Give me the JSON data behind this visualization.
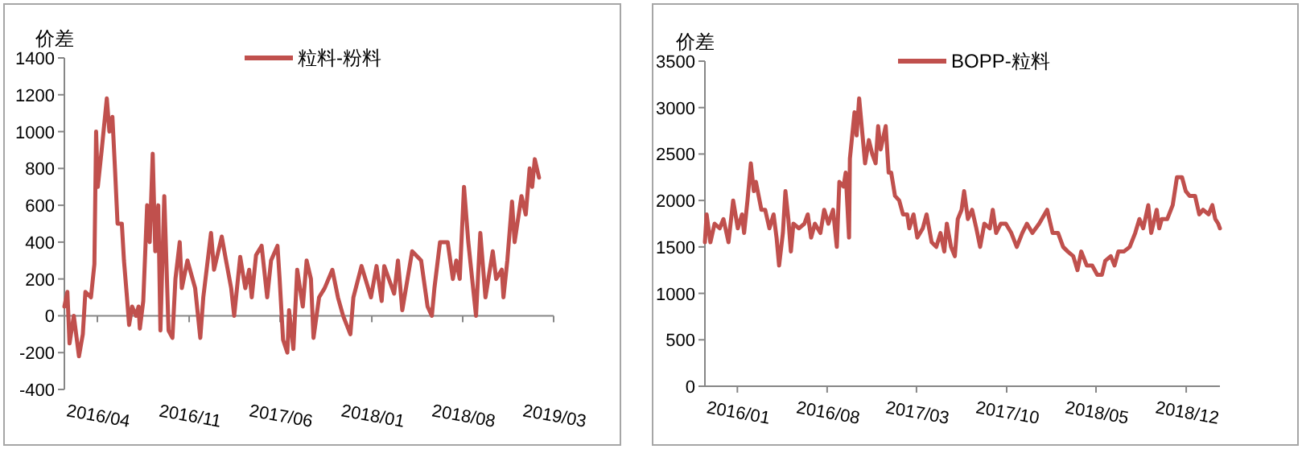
{
  "chart_data": [
    {
      "type": "line",
      "ylabel": "价差",
      "legend": "top",
      "xlim": [
        "2016-02-01",
        "2019-03-18"
      ],
      "ylim": [
        -400,
        1400
      ],
      "yticks": [
        -400,
        -200,
        0,
        200,
        400,
        600,
        800,
        1000,
        1200,
        1400
      ],
      "xticks": [
        {
          "value": "2016-04-18",
          "label": "2016/04"
        },
        {
          "value": "2016-11-18",
          "label": "2016/11"
        },
        {
          "value": "2017-06-18",
          "label": "2017/06"
        },
        {
          "value": "2018-01-18",
          "label": "2018/01"
        },
        {
          "value": "2018-08-18",
          "label": "2018/08"
        },
        {
          "value": "2019-03-18",
          "label": "2019/03"
        }
      ],
      "x": [
        "2016-02-01",
        "2016-02-08",
        "2016-02-13",
        "2016-02-23",
        "2016-03-06",
        "2016-03-15",
        "2016-03-21",
        "2016-04-03",
        "2016-04-11",
        "2016-04-15",
        "2016-04-19",
        "2016-04-28",
        "2016-05-10",
        "2016-05-16",
        "2016-05-23",
        "2016-05-29",
        "2016-06-04",
        "2016-06-14",
        "2016-06-19",
        "2016-06-26",
        "2016-07-01",
        "2016-07-08",
        "2016-07-17",
        "2016-07-23",
        "2016-07-26",
        "2016-08-03",
        "2016-08-12",
        "2016-08-18",
        "2016-08-25",
        "2016-08-31",
        "2016-09-07",
        "2016-09-12",
        "2016-09-21",
        "2016-10-01",
        "2016-10-10",
        "2016-10-17",
        "2016-10-27",
        "2016-11-01",
        "2016-11-14",
        "2016-12-02",
        "2016-12-14",
        "2016-12-21",
        "2017-01-08",
        "2017-01-15",
        "2017-02-02",
        "2017-02-12",
        "2017-02-24",
        "2017-03-03",
        "2017-03-17",
        "2017-03-29",
        "2017-04-07",
        "2017-04-13",
        "2017-04-23",
        "2017-05-06",
        "2017-05-19",
        "2017-05-28",
        "2017-06-12",
        "2017-06-17",
        "2017-06-25",
        "2017-07-05",
        "2017-07-09",
        "2017-07-19",
        "2017-07-28",
        "2017-08-10",
        "2017-08-19",
        "2017-08-29",
        "2017-09-04",
        "2017-09-17",
        "2017-09-30",
        "2017-10-18",
        "2017-10-31",
        "2017-11-12",
        "2017-11-29",
        "2017-12-06",
        "2017-12-25",
        "2018-01-16",
        "2018-01-29",
        "2018-02-10",
        "2018-02-16",
        "2018-03-11",
        "2018-03-20",
        "2018-03-30",
        "2018-04-22",
        "2018-05-13",
        "2018-05-28",
        "2018-06-07",
        "2018-06-13",
        "2018-06-26",
        "2018-07-14",
        "2018-07-26",
        "2018-08-03",
        "2018-08-11",
        "2018-08-21",
        "2018-08-31",
        "2018-09-09",
        "2018-09-18",
        "2018-09-28",
        "2018-10-10",
        "2018-10-27",
        "2018-11-04",
        "2018-11-17",
        "2018-11-21",
        "2018-11-30",
        "2018-12-11",
        "2018-12-17",
        "2019-01-02",
        "2019-01-12",
        "2019-01-21",
        "2019-01-27",
        "2019-02-02",
        "2019-02-12"
      ],
      "series": [
        {
          "name": "粒料-粉料",
          "color": "#c0504d",
          "values": [
            50,
            130,
            -150,
            0,
            -220,
            -100,
            130,
            100,
            280,
            1000,
            700,
            900,
            1180,
            1000,
            1080,
            800,
            500,
            500,
            300,
            100,
            -50,
            50,
            0,
            50,
            -70,
            80,
            600,
            400,
            880,
            350,
            600,
            -80,
            650,
            -80,
            -120,
            200,
            400,
            150,
            300,
            150,
            -120,
            100,
            450,
            250,
            430,
            300,
            150,
            0,
            320,
            150,
            250,
            100,
            330,
            380,
            100,
            300,
            380,
            200,
            -130,
            -200,
            30,
            -180,
            250,
            50,
            300,
            200,
            -120,
            100,
            150,
            250,
            100,
            0,
            -100,
            100,
            270,
            100,
            270,
            80,
            270,
            120,
            300,
            30,
            350,
            300,
            50,
            0,
            150,
            400,
            400,
            200,
            300,
            200,
            700,
            400,
            200,
            0,
            450,
            100,
            350,
            200,
            250,
            100,
            300,
            620,
            400,
            650,
            550,
            800,
            700,
            850,
            750
          ]
        }
      ]
    },
    {
      "type": "line",
      "ylabel": "价差",
      "legend": "top",
      "xlim": [
        "2015-11-01",
        "2019-03-07"
      ],
      "ylim": [
        0,
        3500
      ],
      "yticks": [
        0,
        500,
        1000,
        1500,
        2000,
        2500,
        3000,
        3500
      ],
      "xticks": [
        {
          "value": "2016-01-17",
          "label": "2016/01"
        },
        {
          "value": "2016-08-17",
          "label": "2016/08"
        },
        {
          "value": "2017-03-17",
          "label": "2017/03"
        },
        {
          "value": "2017-10-17",
          "label": "2017/10"
        },
        {
          "value": "2018-05-17",
          "label": "2018/05"
        },
        {
          "value": "2018-12-17",
          "label": "2018/12"
        }
      ],
      "x": [
        "2015-11-01",
        "2015-11-05",
        "2015-11-14",
        "2015-11-24",
        "2015-12-06",
        "2015-12-15",
        "2015-12-27",
        "2016-01-07",
        "2016-01-18",
        "2016-01-28",
        "2016-02-02",
        "2016-02-10",
        "2016-02-18",
        "2016-02-25",
        "2016-03-01",
        "2016-03-14",
        "2016-03-23",
        "2016-04-02",
        "2016-04-12",
        "2016-04-19",
        "2016-04-25",
        "2016-05-04",
        "2016-05-10",
        "2016-05-17",
        "2016-05-23",
        "2016-05-29",
        "2016-06-11",
        "2016-06-24",
        "2016-07-02",
        "2016-07-10",
        "2016-07-19",
        "2016-08-01",
        "2016-08-10",
        "2016-08-20",
        "2016-08-31",
        "2016-09-09",
        "2016-09-15",
        "2016-09-25",
        "2016-09-30",
        "2016-10-08",
        "2016-10-10",
        "2016-10-21",
        "2016-10-26",
        "2016-11-01",
        "2016-11-09",
        "2016-11-15",
        "2016-11-24",
        "2016-12-02",
        "2016-12-10",
        "2016-12-16",
        "2016-12-22",
        "2017-01-03",
        "2017-01-10",
        "2017-01-16",
        "2017-01-25",
        "2017-02-04",
        "2017-02-13",
        "2017-02-23",
        "2017-02-28",
        "2017-03-10",
        "2017-03-19",
        "2017-04-01",
        "2017-04-10",
        "2017-04-22",
        "2017-05-03",
        "2017-05-13",
        "2017-05-22",
        "2017-05-28",
        "2017-06-07",
        "2017-06-16",
        "2017-06-23",
        "2017-07-02",
        "2017-07-08",
        "2017-07-17",
        "2017-07-27",
        "2017-08-06",
        "2017-08-15",
        "2017-08-25",
        "2017-09-07",
        "2017-09-14",
        "2017-09-22",
        "2017-10-03",
        "2017-10-15",
        "2017-10-28",
        "2017-11-10",
        "2017-11-23",
        "2017-12-04",
        "2017-12-17",
        "2018-01-02",
        "2018-01-21",
        "2018-02-03",
        "2018-02-16",
        "2018-02-28",
        "2018-03-11",
        "2018-03-24",
        "2018-04-03",
        "2018-04-12",
        "2018-04-25",
        "2018-05-08",
        "2018-05-20",
        "2018-05-31",
        "2018-06-08",
        "2018-06-21",
        "2018-06-30",
        "2018-07-09",
        "2018-07-22",
        "2018-08-05",
        "2018-08-18",
        "2018-08-28",
        "2018-09-06",
        "2018-09-18",
        "2018-09-25",
        "2018-10-08",
        "2018-10-14",
        "2018-10-20",
        "2018-11-02",
        "2018-11-15",
        "2018-11-25",
        "2018-12-07",
        "2018-12-16",
        "2018-12-25",
        "2019-01-07",
        "2019-01-17",
        "2019-01-26",
        "2019-02-08",
        "2019-02-17",
        "2019-02-24",
        "2019-03-03",
        "2019-03-07"
      ],
      "series": [
        {
          "name": "BOPP-粒料",
          "color": "#c0504d",
          "values": [
            1550,
            1850,
            1550,
            1750,
            1700,
            1800,
            1550,
            2000,
            1700,
            1850,
            1650,
            2000,
            2400,
            2100,
            2200,
            1900,
            1900,
            1700,
            1850,
            1600,
            1300,
            1650,
            2100,
            1800,
            1450,
            1750,
            1700,
            1750,
            1850,
            1600,
            1750,
            1650,
            1900,
            1750,
            1900,
            1500,
            2200,
            2150,
            2300,
            1600,
            2450,
            2950,
            2700,
            3100,
            2700,
            2400,
            2650,
            2500,
            2400,
            2800,
            2550,
            2800,
            2300,
            2300,
            2050,
            2000,
            1850,
            1850,
            1700,
            1850,
            1600,
            1700,
            1850,
            1550,
            1500,
            1650,
            1450,
            1750,
            1500,
            1400,
            1800,
            1900,
            2100,
            1800,
            1900,
            1700,
            1500,
            1750,
            1700,
            1900,
            1650,
            1750,
            1750,
            1650,
            1500,
            1650,
            1750,
            1650,
            1750,
            1900,
            1650,
            1650,
            1500,
            1450,
            1400,
            1250,
            1450,
            1300,
            1300,
            1200,
            1200,
            1350,
            1400,
            1300,
            1450,
            1450,
            1500,
            1650,
            1800,
            1700,
            1950,
            1650,
            1900,
            1700,
            1800,
            1800,
            1950,
            2250,
            2250,
            2100,
            2050,
            2050,
            1850,
            1900,
            1850,
            1950,
            1800,
            1750,
            1700
          ]
        }
      ]
    }
  ]
}
